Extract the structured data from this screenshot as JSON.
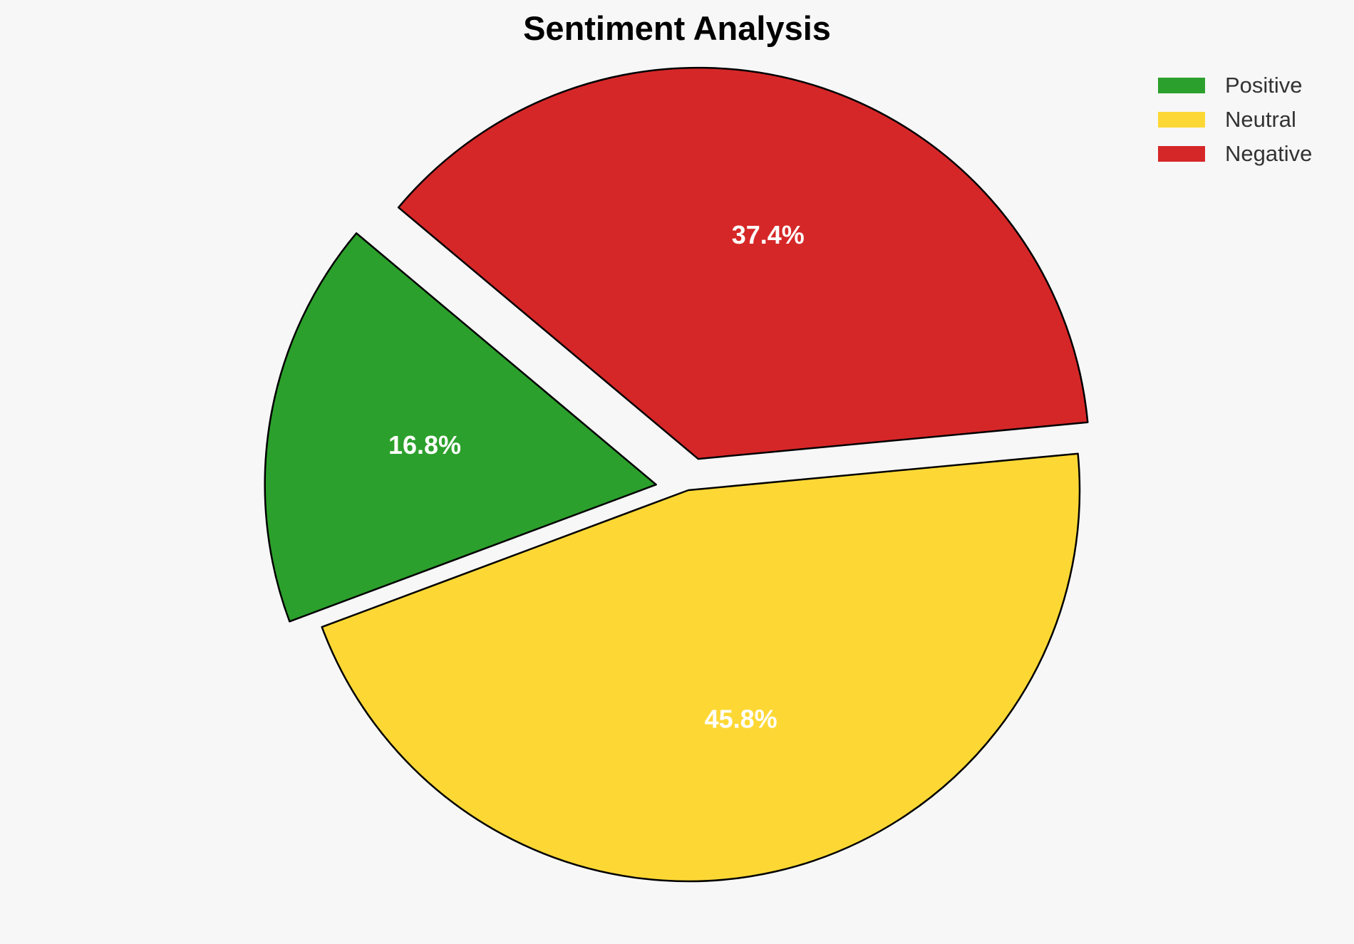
{
  "chart_data": {
    "type": "pie",
    "title": "Sentiment Analysis",
    "slices": [
      {
        "label": "Positive",
        "value": 16.8,
        "pct_label": "16.8%",
        "color": "#2ca02c",
        "exploded": true
      },
      {
        "label": "Neutral",
        "value": 45.8,
        "pct_label": "45.8%",
        "color": "#fdd835",
        "exploded": false
      },
      {
        "label": "Negative",
        "value": 37.4,
        "pct_label": "37.4%",
        "color": "#d62728",
        "exploded": true
      }
    ],
    "legend": {
      "placement": "top-right",
      "entries": [
        "Positive",
        "Neutral",
        "Negative"
      ]
    },
    "start_angle_deg": 140,
    "direction": "counterclockwise",
    "edge_color": "#000000"
  }
}
